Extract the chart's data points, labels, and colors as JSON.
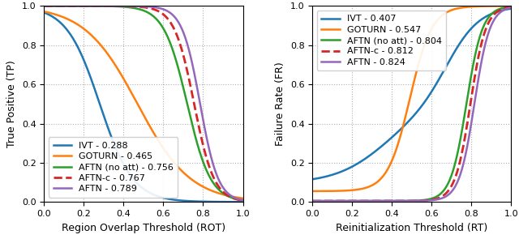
{
  "left_plot": {
    "xlabel": "Region Overlap Threshold (ROT)",
    "ylabel": "True Positive (TP)",
    "xlim": [
      0.0,
      1.0
    ],
    "ylim": [
      0.0,
      1.0
    ],
    "legend_loc": "lower left",
    "series": [
      {
        "label": "IVT - 0.288",
        "color": "#1f77b4",
        "linestyle": "solid",
        "linewidth": 1.8,
        "curve_type": "tp_ivt"
      },
      {
        "label": "GOTURN - 0.465",
        "color": "#ff7f0e",
        "linestyle": "solid",
        "linewidth": 1.8,
        "curve_type": "tp_goturn"
      },
      {
        "label": "AFTN (no att) - 0.756",
        "color": "#2ca02c",
        "linestyle": "solid",
        "linewidth": 1.8,
        "curve_type": "tp_aftn_noatt"
      },
      {
        "label": "AFTN-c - 0.767",
        "color": "#d62728",
        "linestyle": "dashed",
        "linewidth": 2.0,
        "curve_type": "tp_aftn_c"
      },
      {
        "label": "AFTN - 0.789",
        "color": "#9467bd",
        "linestyle": "solid",
        "linewidth": 1.8,
        "curve_type": "tp_aftn"
      }
    ]
  },
  "right_plot": {
    "xlabel": "Reinitialization Threshold (RT)",
    "ylabel": "Failure Rate (FR)",
    "xlim": [
      0.0,
      1.0
    ],
    "ylim": [
      0.0,
      1.0
    ],
    "legend_loc": "upper left",
    "series": [
      {
        "label": "IVT - 0.407",
        "color": "#1f77b4",
        "linestyle": "solid",
        "linewidth": 1.8,
        "curve_type": "fr_ivt"
      },
      {
        "label": "GOTURN - 0.547",
        "color": "#ff7f0e",
        "linestyle": "solid",
        "linewidth": 1.8,
        "curve_type": "fr_goturn"
      },
      {
        "label": "AFTN (no att) - 0.804",
        "color": "#2ca02c",
        "linestyle": "solid",
        "linewidth": 1.8,
        "curve_type": "fr_aftn_noatt"
      },
      {
        "label": "AFTN-c - 0.812",
        "color": "#d62728",
        "linestyle": "dashed",
        "linewidth": 2.0,
        "curve_type": "fr_aftn_c"
      },
      {
        "label": "AFTN - 0.824",
        "color": "#9467bd",
        "linestyle": "solid",
        "linewidth": 1.8,
        "curve_type": "fr_aftn"
      }
    ]
  },
  "grid_color": "#b0b0b0",
  "grid_linestyle": "dotted",
  "grid_linewidth": 0.8,
  "tick_fontsize": 8,
  "label_fontsize": 9,
  "legend_fontsize": 8
}
